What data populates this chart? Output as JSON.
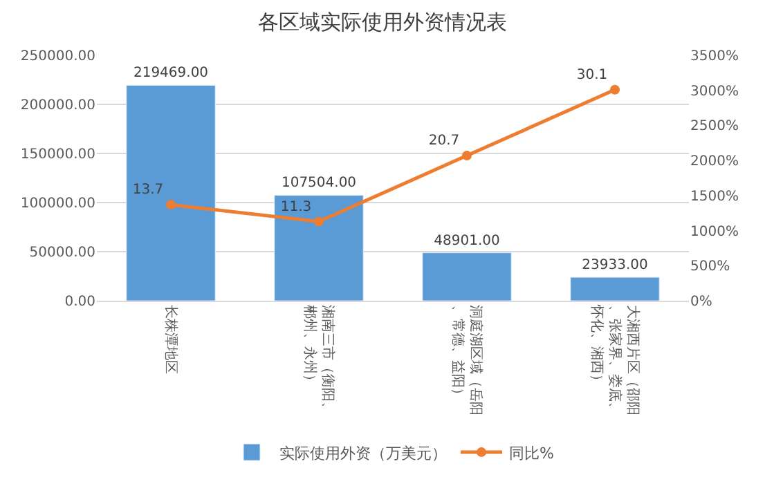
{
  "chart_data": {
    "type": "bar",
    "title": "各区域实际使用外资情况表",
    "categories": [
      "长株潭地区",
      "湘南三市（衡阳、郴州、永州）",
      "洞庭湖区域（岳阳、常德、益阳）",
      "大湘西片区（邵阳、张家界、娄底、怀化、湘西）"
    ],
    "series": [
      {
        "name": "实际使用外资（万美元）",
        "color": "#5b9bd5",
        "values": [
          219469.0,
          107504.0,
          48901.0,
          23933.0
        ],
        "value_labels": [
          "219469.00",
          "107504.00",
          "48901.00",
          "23933.00"
        ]
      },
      {
        "name": "同比%",
        "type": "line",
        "axis": "y2",
        "color": "#ed7d31",
        "marker": "circle",
        "values": [
          13.7,
          11.3,
          20.7,
          30.1
        ],
        "value_labels": [
          "13.7",
          "11.3",
          "20.7",
          "30.1"
        ]
      }
    ],
    "ylim": [
      0,
      250000
    ],
    "yticks": [
      {
        "value": 0,
        "label": "0.00"
      },
      {
        "value": 50000,
        "label": "50000.00"
      },
      {
        "value": 100000,
        "label": "100000.00"
      },
      {
        "value": 150000,
        "label": "150000.00"
      },
      {
        "value": 200000,
        "label": "200000.00"
      },
      {
        "value": 250000,
        "label": "250000.00"
      }
    ],
    "y2lim": [
      0,
      35
    ],
    "y2ticks": [
      {
        "value": 0,
        "label": "0%"
      },
      {
        "value": 5,
        "label": "500%"
      },
      {
        "value": 10,
        "label": "1000%"
      },
      {
        "value": 15,
        "label": "1500%"
      },
      {
        "value": 20,
        "label": "2000%"
      },
      {
        "value": 25,
        "label": "2500%"
      },
      {
        "value": 30,
        "label": "3000%"
      },
      {
        "value": 35,
        "label": "3500%"
      }
    ],
    "grid": "y",
    "legend": "bottom"
  }
}
